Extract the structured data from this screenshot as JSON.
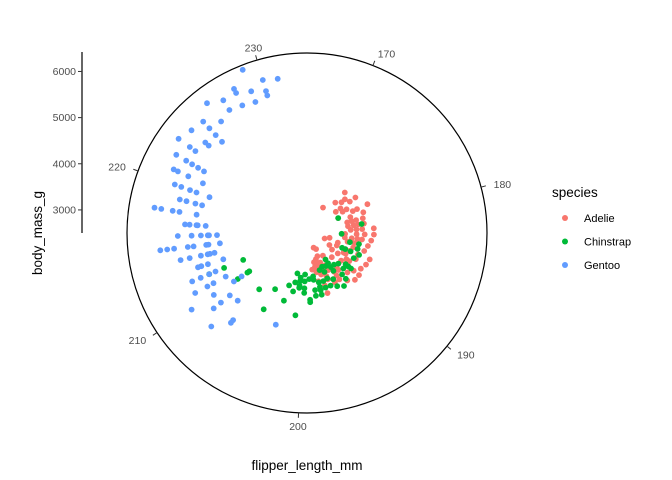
{
  "chart_data": {
    "type": "scatter",
    "coord": "polar",
    "theta_variable": "flipper_length_mm",
    "r_variable": "body_mass_g",
    "xlabel": "flipper_length_mm",
    "ylabel": "body_mass_g",
    "theta_range": [
      166,
      233
    ],
    "theta_ticks": [
      "170",
      "180",
      "190",
      "200",
      "210",
      "220",
      "230"
    ],
    "r_range": [
      2500,
      6400
    ],
    "r_ticks": [
      "3000",
      "4000",
      "5000",
      "6000"
    ],
    "grid": false,
    "legend": {
      "title": "species",
      "position": "right",
      "entries": [
        "Adelie",
        "Chinstrap",
        "Gentoo"
      ]
    },
    "colors": {
      "Adelie": "#F8766D",
      "Chinstrap": "#00BA38",
      "Gentoo": "#619CFF"
    },
    "series": [
      {
        "name": "Adelie",
        "points": [
          [
            190,
            3650
          ],
          [
            191,
            3725
          ],
          [
            191,
            3950
          ],
          [
            192,
            3500
          ],
          [
            193,
            3525
          ],
          [
            194,
            3725
          ],
          [
            194,
            3650
          ],
          [
            195,
            3600
          ],
          [
            195,
            3525
          ],
          [
            196,
            3875
          ],
          [
            196,
            3700
          ],
          [
            191,
            3250
          ],
          [
            192,
            3550
          ],
          [
            193,
            3625
          ],
          [
            194,
            3425
          ],
          [
            195,
            3400
          ],
          [
            196,
            3450
          ],
          [
            197,
            3575
          ],
          [
            193,
            3100
          ],
          [
            194,
            3300
          ],
          [
            195,
            3200
          ],
          [
            196,
            3300
          ],
          [
            197,
            3375
          ],
          [
            194,
            2900
          ],
          [
            195,
            3050
          ],
          [
            196,
            3100
          ],
          [
            196,
            3200
          ],
          [
            195,
            2850
          ],
          [
            197,
            3150
          ],
          [
            197,
            3275
          ],
          [
            193,
            3725
          ],
          [
            192,
            3850
          ],
          [
            198,
            3300
          ],
          [
            197,
            3250
          ],
          [
            196,
            3425
          ],
          [
            191,
            3450
          ],
          [
            190,
            3950
          ],
          [
            188,
            3400
          ],
          [
            189,
            3525
          ],
          [
            189,
            3300
          ],
          [
            190,
            3800
          ],
          [
            185,
            3000
          ],
          [
            186,
            2900
          ],
          [
            186,
            3200
          ],
          [
            187,
            3200
          ],
          [
            187,
            3400
          ],
          [
            187,
            3500
          ],
          [
            188,
            3050
          ],
          [
            188,
            3700
          ],
          [
            189,
            3150
          ],
          [
            184,
            3475
          ],
          [
            184,
            3900
          ],
          [
            185,
            3650
          ],
          [
            185,
            3850
          ],
          [
            186,
            3550
          ],
          [
            186,
            3800
          ],
          [
            187,
            3700
          ],
          [
            187,
            3975
          ],
          [
            188,
            3450
          ],
          [
            188,
            3950
          ],
          [
            189,
            3600
          ],
          [
            189,
            3900
          ],
          [
            190,
            3450
          ],
          [
            183,
            3575
          ],
          [
            183,
            3750
          ],
          [
            184,
            3325
          ],
          [
            184,
            3600
          ],
          [
            185,
            3400
          ],
          [
            181,
            3625
          ],
          [
            182,
            3450
          ],
          [
            182,
            3700
          ],
          [
            183,
            3325
          ],
          [
            183,
            3950
          ],
          [
            184,
            3700
          ],
          [
            185,
            3550
          ],
          [
            186,
            3650
          ],
          [
            181,
            3750
          ],
          [
            182,
            3950
          ],
          [
            180,
            3750
          ],
          [
            180,
            3500
          ],
          [
            178,
            3250
          ],
          [
            179,
            3500
          ],
          [
            180,
            3400
          ],
          [
            181,
            3400
          ],
          [
            178,
            3600
          ],
          [
            178,
            3950
          ],
          [
            177,
            3500
          ],
          [
            176,
            3275
          ],
          [
            178,
            3700
          ],
          [
            179,
            3800
          ],
          [
            181,
            3525
          ],
          [
            182,
            3575
          ],
          [
            174,
            3400
          ],
          [
            175,
            3500
          ],
          [
            172,
            3150
          ],
          [
            176,
            3400
          ],
          [
            175,
            3600
          ],
          [
            176,
            3650
          ],
          [
            177,
            3400
          ],
          [
            174,
            3700
          ],
          [
            176,
            3800
          ],
          [
            180,
            3600
          ]
        ]
      },
      {
        "name": "Chinstrap",
        "points": [
          [
            178,
            3250
          ],
          [
            181,
            3700
          ],
          [
            183,
            3250
          ],
          [
            185,
            3450
          ],
          [
            186,
            3650
          ],
          [
            187,
            3400
          ],
          [
            187,
            3525
          ],
          [
            187,
            3725
          ],
          [
            188,
            3650
          ],
          [
            190,
            3725
          ],
          [
            190,
            3650
          ],
          [
            191,
            3450
          ],
          [
            192,
            3675
          ],
          [
            193,
            3900
          ],
          [
            193,
            3300
          ],
          [
            193,
            3500
          ],
          [
            194,
            3650
          ],
          [
            195,
            3575
          ],
          [
            195,
            3300
          ],
          [
            196,
            3600
          ],
          [
            196,
            3750
          ],
          [
            197,
            3600
          ],
          [
            197,
            3775
          ],
          [
            197,
            3875
          ],
          [
            198,
            3750
          ],
          [
            198,
            3525
          ],
          [
            199,
            3500
          ],
          [
            199,
            4000
          ],
          [
            200,
            3800
          ],
          [
            200,
            3400
          ],
          [
            200,
            3550
          ],
          [
            200,
            3700
          ],
          [
            201,
            3550
          ],
          [
            201,
            4300
          ],
          [
            201,
            3700
          ],
          [
            201,
            3650
          ],
          [
            202,
            3400
          ],
          [
            202,
            3800
          ],
          [
            203,
            4050
          ],
          [
            205,
            3900
          ],
          [
            207,
            4100
          ],
          [
            210,
            4300
          ],
          [
            210,
            4050
          ],
          [
            210,
            4000
          ],
          [
            212,
            4800
          ],
          [
            212,
            4450
          ],
          [
            212,
            4000
          ],
          [
            201,
            3475
          ],
          [
            195,
            3425
          ],
          [
            193,
            3400
          ],
          [
            192,
            3400
          ],
          [
            190,
            3575
          ],
          [
            198,
            3450
          ],
          [
            196,
            3350
          ],
          [
            194,
            3325
          ],
          [
            205,
            4400
          ],
          [
            199,
            3950
          ],
          [
            198,
            3875
          ],
          [
            197,
            3700
          ],
          [
            203,
            3700
          ],
          [
            202,
            3600
          ],
          [
            195,
            3750
          ],
          [
            194,
            3825
          ],
          [
            191,
            3600
          ],
          [
            193,
            3200
          ],
          [
            192,
            3800
          ],
          [
            187,
            3325
          ],
          [
            185,
            3650
          ]
        ]
      },
      {
        "name": "Gentoo",
        "points": [
          [
            203,
            4600
          ],
          [
            207,
            5050
          ],
          [
            208,
            4600
          ],
          [
            209,
            4900
          ],
          [
            209,
            4650
          ],
          [
            210,
            5500
          ],
          [
            210,
            4400
          ],
          [
            210,
            4200
          ],
          [
            211,
            4800
          ],
          [
            211,
            4950
          ],
          [
            211,
            4500
          ],
          [
            212,
            4650
          ],
          [
            212,
            5000
          ],
          [
            212,
            4800
          ],
          [
            213,
            4900
          ],
          [
            213,
            4750
          ],
          [
            213,
            4400
          ],
          [
            214,
            4850
          ],
          [
            214,
            4650
          ],
          [
            214,
            4700
          ],
          [
            214,
            4550
          ],
          [
            215,
            5700
          ],
          [
            215,
            5100
          ],
          [
            215,
            5400
          ],
          [
            215,
            4700
          ],
          [
            215,
            4650
          ],
          [
            215,
            4400
          ],
          [
            216,
            5000
          ],
          [
            216,
            4800
          ],
          [
            216,
            4650
          ],
          [
            216,
            4450
          ],
          [
            217,
            4900
          ],
          [
            217,
            5050
          ],
          [
            217,
            4875
          ],
          [
            217,
            4700
          ],
          [
            218,
            5300
          ],
          [
            218,
            5850
          ],
          [
            218,
            5700
          ],
          [
            219,
            5200
          ],
          [
            219,
            5000
          ],
          [
            220,
            5400
          ],
          [
            220,
            5200
          ],
          [
            220,
            4750
          ],
          [
            221,
            5600
          ],
          [
            221,
            5350
          ],
          [
            221,
            5000
          ],
          [
            222,
            5550
          ],
          [
            222,
            5250
          ],
          [
            222,
            5400
          ],
          [
            223,
            5950
          ],
          [
            223,
            5500
          ],
          [
            224,
            5850
          ],
          [
            224,
            5350
          ],
          [
            225,
            5600
          ],
          [
            225,
            5800
          ],
          [
            226,
            6050
          ],
          [
            228,
            6000
          ],
          [
            229,
            5800
          ],
          [
            230,
            5950
          ],
          [
            230,
            5600
          ],
          [
            229,
            5550
          ],
          [
            228,
            5600
          ],
          [
            226,
            5550
          ],
          [
            227,
            5650
          ],
          [
            225,
            5400
          ],
          [
            222,
            5100
          ],
          [
            220,
            5050
          ],
          [
            219,
            4850
          ],
          [
            218,
            4925
          ],
          [
            217,
            5150
          ],
          [
            216,
            4625
          ],
          [
            215,
            4975
          ],
          [
            214,
            5100
          ],
          [
            213,
            4975
          ],
          [
            212,
            5200
          ],
          [
            211,
            5250
          ],
          [
            210,
            4925
          ],
          [
            209,
            5100
          ],
          [
            208,
            5400
          ],
          [
            207,
            4975
          ],
          [
            221,
            5700
          ],
          [
            222,
            5800
          ],
          [
            219,
            5350
          ],
          [
            220,
            5550
          ],
          [
            218,
            5450
          ],
          [
            223,
            5650
          ],
          [
            224,
            5450
          ],
          [
            230,
            5700
          ],
          [
            231,
            5900
          ],
          [
            229,
            6300
          ],
          [
            228,
            5900
          ],
          [
            227,
            5900
          ],
          [
            225,
            5200
          ],
          [
            215,
            5550
          ],
          [
            214,
            5300
          ],
          [
            216,
            5300
          ]
        ]
      }
    ]
  }
}
